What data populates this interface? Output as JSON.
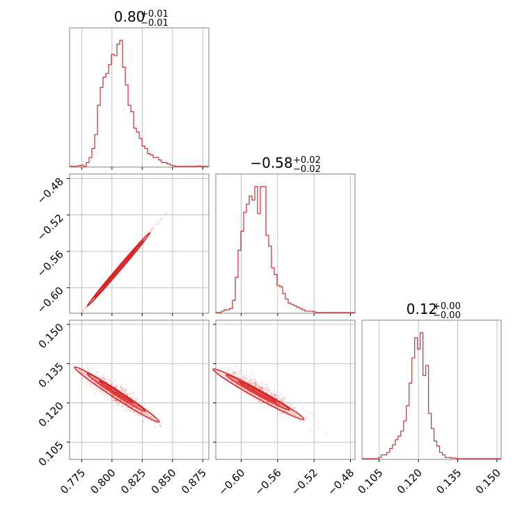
{
  "figure": {
    "type": "corner-plot",
    "color": "#d62728",
    "parameters": [
      {
        "title": {
          "value": "0.80",
          "plus": "+0.01",
          "minus": "−0.01"
        },
        "range": [
          0.765,
          0.88
        ],
        "ticks": [
          "0.775",
          "0.800",
          "0.825",
          "0.850",
          "0.875"
        ],
        "tick_values": [
          0.775,
          0.8,
          0.825,
          0.85,
          0.875
        ]
      },
      {
        "title": {
          "value": "−0.58",
          "plus": "+0.02",
          "minus": "−0.02"
        },
        "range": [
          -0.628,
          -0.475
        ],
        "ticks": [
          "−0.60",
          "−0.56",
          "−0.52",
          "−0.48"
        ],
        "tick_values": [
          -0.6,
          -0.56,
          -0.52,
          -0.48
        ]
      },
      {
        "title": {
          "value": "0.12",
          "plus": "+0.00",
          "minus": "−0.00"
        },
        "range": [
          0.0984,
          0.1516
        ],
        "ticks": [
          "0.105",
          "0.120",
          "0.135",
          "0.150"
        ],
        "tick_values": [
          0.105,
          0.12,
          0.135,
          0.15
        ]
      }
    ]
  },
  "chart_data": [
    {
      "type": "histogram",
      "panel": "p0",
      "bin_start": 0.765,
      "bin_width": 0.0023,
      "counts": [
        0,
        0,
        0,
        0.5,
        1,
        0,
        3,
        7,
        14,
        25,
        48,
        62,
        70,
        73,
        80,
        88,
        87,
        96,
        99,
        78,
        64,
        48,
        43,
        30,
        27,
        22,
        16,
        14,
        10,
        9,
        7,
        7,
        5,
        3,
        3,
        2,
        1,
        0.5,
        0,
        0,
        0,
        0,
        0,
        0,
        0,
        0,
        0.3,
        0,
        0,
        0
      ]
    },
    {
      "type": "histogram",
      "panel": "p1",
      "bin_start": -0.628,
      "bin_width": 0.00306,
      "counts": [
        0,
        0,
        1,
        2,
        2,
        3,
        9,
        26,
        46,
        60,
        74,
        80,
        86,
        83,
        93,
        73,
        93,
        93,
        57,
        49,
        33,
        28,
        20,
        19,
        14,
        10,
        7,
        6,
        5,
        4,
        3,
        2,
        1,
        1,
        1,
        0.5,
        0,
        0,
        0,
        0,
        0,
        0,
        0,
        0,
        0,
        0,
        0,
        0,
        0,
        0
      ]
    },
    {
      "type": "histogram",
      "panel": "p2",
      "bin_start": 0.0984,
      "bin_width": 0.00106,
      "counts": [
        0,
        0,
        0,
        0,
        0,
        0,
        1,
        3,
        3,
        5,
        8,
        11,
        15,
        18,
        22,
        30,
        42,
        60,
        80,
        96,
        87,
        100,
        66,
        74,
        36,
        24,
        14,
        10,
        5,
        3,
        1,
        1,
        0.5,
        0.5,
        0,
        0,
        0,
        0,
        0,
        0,
        0,
        0,
        0,
        0,
        0,
        0,
        0,
        0,
        0,
        0
      ]
    },
    {
      "type": "density-2d",
      "panel": "p10",
      "x_param": 0,
      "y_param": 1,
      "scatter": {
        "n": 650,
        "x_mean": 0.805,
        "x_sd": 0.012,
        "y_slope": 1.56,
        "y_intercept": -1.836,
        "y_scatter": 0.0011,
        "x_min": 0.768,
        "x_max": 0.86
      },
      "contours": [
        {
          "center": [
            0.8055,
            -0.5798
          ],
          "half_length": 0.026,
          "half_width": 0.0032
        },
        {
          "center": [
            0.8058,
            -0.5795
          ],
          "half_length": 0.02,
          "half_width": 0.0022
        },
        {
          "center": [
            0.806,
            -0.5792
          ],
          "half_length": 0.013,
          "half_width": 0.0013
        }
      ]
    },
    {
      "type": "density-2d",
      "panel": "p20",
      "x_param": 0,
      "y_param": 2,
      "scatter": {
        "n": 650,
        "x_mean": 0.805,
        "x_sd": 0.012,
        "y_slope": -0.3,
        "y_intercept": 0.3645,
        "y_scatter": 0.0018,
        "x_min": 0.774,
        "x_max": 0.86
      },
      "contours": [
        {
          "center": [
            0.804,
            0.1232
          ],
          "half_length": 0.035,
          "half_width": 0.0018
        },
        {
          "center": [
            0.8035,
            0.124
          ],
          "half_length": 0.024,
          "half_width": 0.0011
        },
        {
          "center": [
            0.8035,
            0.1242
          ],
          "half_length": 0.014,
          "half_width": 0.0006
        }
      ]
    },
    {
      "type": "density-2d",
      "panel": "p21",
      "x_param": 1,
      "y_param": 2,
      "scatter": {
        "n": 650,
        "x_mean": -0.579,
        "x_sd": 0.018,
        "y_slope": -0.192,
        "y_intercept": 0.0128,
        "y_scatter": 0.0018,
        "x_min": -0.618,
        "x_max": -0.505
      },
      "contours": [
        {
          "center": [
            -0.581,
            0.1233
          ],
          "half_length": 0.05,
          "half_width": 0.0018
        },
        {
          "center": [
            -0.5815,
            0.124
          ],
          "half_length": 0.035,
          "half_width": 0.0011
        },
        {
          "center": [
            -0.582,
            0.1242
          ],
          "half_length": 0.021,
          "half_width": 0.0006
        }
      ]
    }
  ]
}
